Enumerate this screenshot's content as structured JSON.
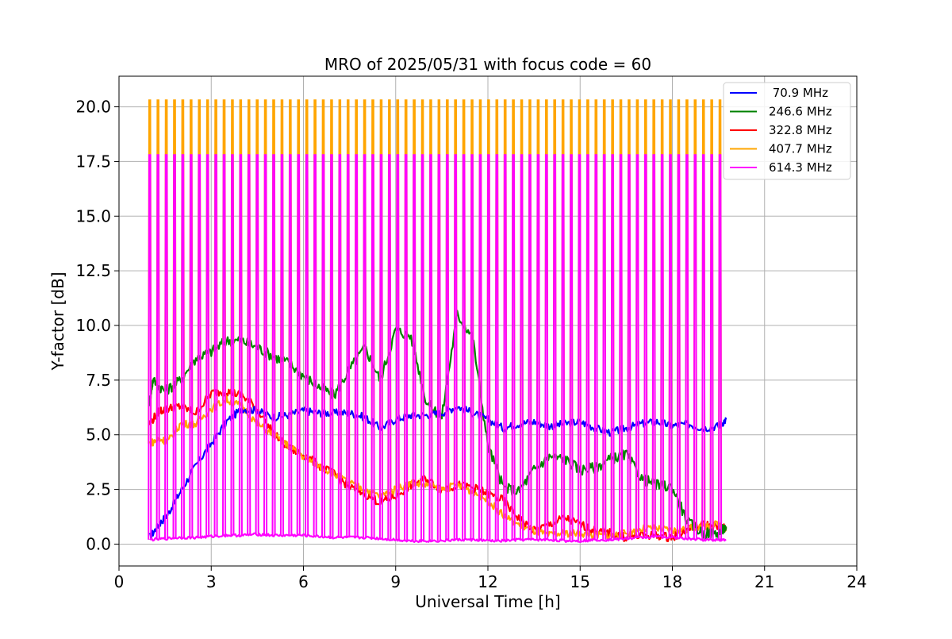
{
  "chart_data": {
    "type": "line",
    "title": "MRO of 2025/05/31 with focus code = 60",
    "xlabel": "Universal Time [h]",
    "ylabel": "Y-factor [dB]",
    "xlim": [
      0,
      24
    ],
    "ylim": [
      -1.0,
      21.4
    ],
    "xticks": [
      0,
      3,
      6,
      9,
      12,
      15,
      18,
      21,
      24
    ],
    "xtick_labels": [
      "0",
      "3",
      "6",
      "9",
      "12",
      "15",
      "18",
      "21",
      "24"
    ],
    "yticks": [
      0,
      2.5,
      5,
      7.5,
      10,
      12.5,
      15,
      17.5,
      20
    ],
    "ytick_labels": [
      "0.0",
      "2.5",
      "5.0",
      "7.5",
      "10.0",
      "12.5",
      "15.0",
      "17.5",
      "20.0"
    ],
    "grid": true,
    "legend_position": "top-right",
    "series": [
      {
        "name": " 70.9 MHz",
        "color": "#0000ff",
        "x": [
          1.0,
          1.3,
          1.6,
          2.0,
          2.5,
          3.0,
          3.5,
          4.0,
          4.5,
          5.0,
          5.5,
          6.0,
          6.5,
          7.0,
          7.5,
          8.0,
          8.5,
          9.0,
          9.5,
          10.0,
          10.5,
          11.0,
          11.5,
          12.0,
          12.5,
          13.0,
          13.5,
          14.0,
          14.5,
          15.0,
          15.5,
          16.0,
          16.5,
          17.0,
          17.5,
          18.0,
          18.5,
          19.0,
          19.5,
          19.75
        ],
        "y": [
          0.3,
          0.9,
          1.4,
          2.4,
          3.6,
          4.6,
          5.6,
          6.2,
          6.1,
          5.8,
          5.9,
          6.1,
          6.0,
          6.0,
          6.0,
          5.8,
          5.3,
          5.7,
          5.9,
          5.9,
          6.0,
          6.3,
          6.0,
          5.7,
          5.3,
          5.5,
          5.6,
          5.4,
          5.5,
          5.6,
          5.3,
          5.1,
          5.3,
          5.5,
          5.6,
          5.4,
          5.5,
          5.3,
          5.4,
          5.7
        ]
      },
      {
        "name": "246.6 MHz",
        "color": "#008000",
        "x": [
          1.0,
          1.1,
          1.5,
          2.0,
          2.5,
          3.0,
          3.5,
          4.0,
          4.5,
          5.0,
          5.5,
          6.0,
          6.5,
          7.0,
          7.5,
          8.0,
          8.5,
          9.0,
          9.5,
          10.0,
          10.5,
          11.0,
          11.5,
          12.0,
          12.5,
          13.0,
          13.5,
          14.0,
          14.5,
          15.0,
          15.5,
          16.0,
          16.5,
          17.0,
          17.5,
          18.0,
          18.5,
          19.0,
          19.5,
          19.75
        ],
        "y": [
          6.5,
          7.5,
          7.0,
          7.5,
          8.5,
          8.8,
          9.3,
          9.3,
          9.0,
          8.6,
          8.3,
          7.7,
          7.2,
          6.8,
          8.0,
          9.0,
          7.5,
          9.8,
          9.5,
          6.5,
          5.8,
          10.5,
          9.5,
          4.5,
          2.6,
          2.4,
          3.4,
          4.0,
          3.9,
          3.4,
          3.5,
          3.9,
          4.1,
          3.0,
          2.7,
          2.6,
          1.0,
          0.5,
          0.5,
          0.8
        ]
      },
      {
        "name": "322.8 MHz",
        "color": "#ff0000",
        "x": [
          1.0,
          1.3,
          1.6,
          2.0,
          2.5,
          3.0,
          3.5,
          4.0,
          4.5,
          5.0,
          5.5,
          6.0,
          6.5,
          7.0,
          7.5,
          8.0,
          8.5,
          9.0,
          9.5,
          10.0,
          10.5,
          11.0,
          11.5,
          12.0,
          12.5,
          13.0,
          13.5,
          14.0,
          14.5,
          15.0,
          15.5,
          16.0,
          16.5,
          17.0,
          17.5,
          18.0,
          18.5,
          19.0,
          19.5,
          19.75
        ],
        "y": [
          5.5,
          6.1,
          6.2,
          6.3,
          6.0,
          6.9,
          7.0,
          6.8,
          6.2,
          5.1,
          4.4,
          4.1,
          3.6,
          3.2,
          2.6,
          2.3,
          1.9,
          2.2,
          2.7,
          3.0,
          2.5,
          2.7,
          2.6,
          2.3,
          2.0,
          1.2,
          0.6,
          0.9,
          1.2,
          0.9,
          0.6,
          0.5,
          0.3,
          0.4,
          0.4,
          0.3,
          0.7,
          0.9,
          0.8,
          0.7
        ]
      },
      {
        "name": "407.7 MHz",
        "color": "#ffa500",
        "x": [
          1.0,
          1.3,
          1.6,
          2.0,
          2.5,
          3.0,
          3.5,
          4.0,
          4.5,
          5.0,
          5.5,
          6.0,
          6.5,
          7.0,
          7.5,
          8.0,
          8.5,
          9.0,
          9.5,
          10.0,
          10.5,
          11.0,
          11.5,
          12.0,
          12.5,
          13.0,
          13.5,
          14.0,
          14.5,
          15.0,
          15.5,
          16.0,
          16.5,
          17.0,
          17.5,
          18.0,
          18.5,
          19.0,
          19.5,
          19.75
        ],
        "y": [
          4.6,
          4.8,
          4.7,
          5.5,
          5.5,
          6.2,
          6.6,
          6.3,
          5.5,
          5.0,
          4.5,
          4.0,
          3.6,
          3.2,
          2.8,
          2.5,
          2.2,
          2.5,
          2.8,
          2.7,
          2.5,
          2.7,
          2.4,
          2.0,
          1.3,
          0.9,
          0.6,
          0.4,
          0.5,
          0.5,
          0.4,
          0.4,
          0.5,
          0.7,
          0.7,
          0.6,
          0.7,
          0.8,
          0.9,
          0.7
        ]
      },
      {
        "name": "614.3 MHz",
        "color": "#ff00ff",
        "x": [
          1.0,
          1.5,
          2.0,
          2.5,
          3.0,
          3.5,
          4.0,
          4.5,
          5.0,
          5.5,
          6.0,
          6.5,
          7.0,
          7.5,
          8.0,
          8.5,
          9.0,
          9.5,
          10.0,
          10.5,
          11.0,
          11.5,
          12.0,
          12.5,
          13.0,
          13.5,
          14.0,
          14.5,
          15.0,
          15.5,
          16.0,
          16.5,
          17.0,
          17.5,
          18.0,
          18.5,
          19.0,
          19.5,
          19.75
        ],
        "y": [
          0.2,
          0.25,
          0.3,
          0.3,
          0.35,
          0.4,
          0.4,
          0.45,
          0.4,
          0.4,
          0.4,
          0.35,
          0.3,
          0.3,
          0.3,
          0.25,
          0.2,
          0.15,
          0.15,
          0.15,
          0.2,
          0.2,
          0.15,
          0.15,
          0.2,
          0.2,
          0.2,
          0.15,
          0.15,
          0.2,
          0.2,
          0.25,
          0.3,
          0.35,
          0.3,
          0.25,
          0.2,
          0.2,
          0.2
        ]
      }
    ],
    "calibration_spikes": {
      "start": 1.0,
      "end": 19.55,
      "count": 70,
      "peaks": [
        {
          "series": "407.7 MHz",
          "value": 20.3
        },
        {
          "series": "614.3 MHz",
          "value": 17.8
        }
      ]
    }
  }
}
